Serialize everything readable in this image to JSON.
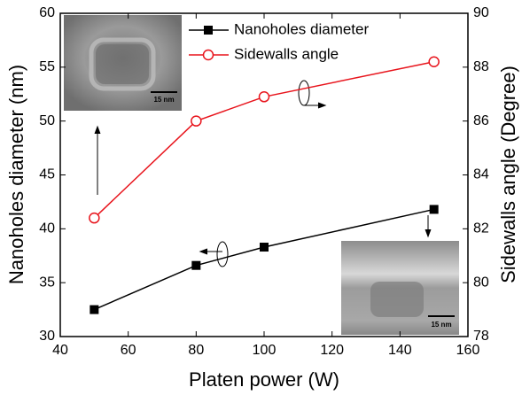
{
  "chart_data": {
    "type": "line",
    "xlabel": "Platen power (W)",
    "ylabel": "Nanoholes diameter (nm)",
    "y2label": "Sidewalls angle (Degree)",
    "x": [
      50,
      80,
      100,
      150
    ],
    "series": [
      {
        "name": "Nanoholes diameter",
        "color": "#000000",
        "marker": "square",
        "values": [
          32.5,
          36.6,
          38.3,
          41.8
        ]
      },
      {
        "name": "Sidewalls angle",
        "color": "#e8141c",
        "marker": "open-circle",
        "axis": "y2",
        "values": [
          82.4,
          86.0,
          86.9,
          88.2
        ]
      }
    ],
    "xlim": [
      40,
      160
    ],
    "xticks": [
      40,
      60,
      80,
      100,
      120,
      140,
      160
    ],
    "ylim": [
      30,
      60
    ],
    "yticks": [
      30,
      35,
      40,
      45,
      50,
      55,
      60
    ],
    "y2lim": [
      78,
      90
    ],
    "y2ticks": [
      78,
      80,
      82,
      84,
      86,
      88,
      90
    ],
    "legend": "upper center",
    "annotations": [
      "15 nm",
      "15 nm"
    ]
  }
}
